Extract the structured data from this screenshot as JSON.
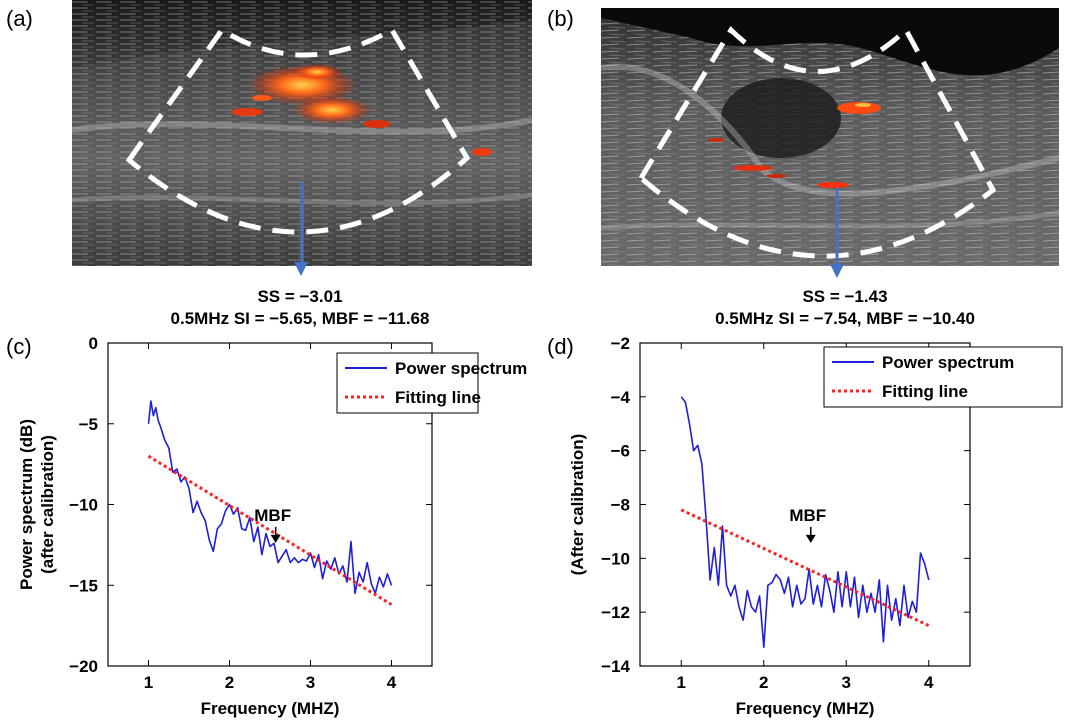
{
  "panels": {
    "a": {
      "label": "(a)",
      "ss": "SS = −3.01",
      "stats": "0.5MHz SI = −5.65, MBF = −11.68"
    },
    "b": {
      "label": "(b)",
      "ss": "SS = −1.43",
      "stats": "0.5MHz SI = −7.54, MBF = −10.40"
    },
    "c": {
      "label": "(c)"
    },
    "d": {
      "label": "(d)"
    }
  },
  "colors": {
    "spectrum": "#1f1fd9",
    "fitting": "#ff2020",
    "marker_arrow": "#4472c4"
  },
  "chart_data": [
    {
      "type": "line",
      "panel": "c",
      "xlabel": "Frequency (MHZ)",
      "ylabel": "Power spectrum (dB)",
      "ylabel2": "(after calibration)",
      "xlim": [
        0.5,
        4.5
      ],
      "ylim": [
        -20,
        0
      ],
      "xticks": [
        1,
        2,
        3,
        4
      ],
      "yticks": [
        0,
        -5,
        -10,
        -15,
        -20
      ],
      "legend_position": "top-right",
      "annotation": {
        "text": "MBF",
        "x": 2.57,
        "y": -12.5
      },
      "series": [
        {
          "name": "Power spectrum",
          "style": "solid",
          "x": [
            1.0,
            1.03,
            1.06,
            1.09,
            1.12,
            1.15,
            1.2,
            1.25,
            1.3,
            1.35,
            1.4,
            1.45,
            1.5,
            1.55,
            1.6,
            1.65,
            1.7,
            1.75,
            1.8,
            1.85,
            1.9,
            1.95,
            2.0,
            2.05,
            2.1,
            2.15,
            2.2,
            2.25,
            2.3,
            2.35,
            2.4,
            2.45,
            2.5,
            2.55,
            2.6,
            2.65,
            2.7,
            2.75,
            2.8,
            2.85,
            2.9,
            2.95,
            3.0,
            3.05,
            3.1,
            3.15,
            3.2,
            3.25,
            3.3,
            3.35,
            3.4,
            3.45,
            3.5,
            3.55,
            3.6,
            3.65,
            3.7,
            3.75,
            3.8,
            3.85,
            3.9,
            3.95,
            4.0
          ],
          "y": [
            -5.0,
            -3.6,
            -4.5,
            -4.0,
            -4.8,
            -5.2,
            -6.0,
            -6.5,
            -8.0,
            -7.8,
            -8.6,
            -8.3,
            -9.0,
            -10.5,
            -9.8,
            -10.5,
            -11.0,
            -12.2,
            -12.9,
            -11.5,
            -11.2,
            -10.4,
            -10.0,
            -10.6,
            -10.2,
            -11.5,
            -11.6,
            -10.8,
            -12.3,
            -11.4,
            -13.1,
            -11.8,
            -12.6,
            -12.4,
            -13.6,
            -13.2,
            -12.8,
            -13.6,
            -13.3,
            -13.6,
            -13.4,
            -13.5,
            -13.0,
            -13.9,
            -13.1,
            -14.6,
            -13.5,
            -14.0,
            -13.3,
            -14.3,
            -13.8,
            -14.8,
            -12.3,
            -15.5,
            -14.2,
            -14.8,
            -13.6,
            -14.9,
            -15.5,
            -14.5,
            -15.1,
            -14.3,
            -15.0
          ]
        },
        {
          "name": "Fitting line",
          "style": "dotted",
          "x": [
            1.0,
            4.0
          ],
          "y": [
            -7.0,
            -16.2
          ]
        }
      ]
    },
    {
      "type": "line",
      "panel": "d",
      "xlabel": "Frequency (MHZ)",
      "ylabel": "(After calibration)",
      "xlim": [
        0.5,
        4.5
      ],
      "ylim": [
        -14,
        -2
      ],
      "xticks": [
        1,
        2,
        3,
        4
      ],
      "yticks": [
        -2,
        -4,
        -6,
        -8,
        -10,
        -12,
        -14
      ],
      "legend_position": "top-right",
      "annotation": {
        "text": "MBF",
        "x": 2.57,
        "y": -9.5
      },
      "series": [
        {
          "name": "Power spectrum",
          "style": "solid",
          "x": [
            1.0,
            1.05,
            1.1,
            1.15,
            1.2,
            1.25,
            1.3,
            1.35,
            1.4,
            1.45,
            1.5,
            1.55,
            1.6,
            1.65,
            1.7,
            1.75,
            1.8,
            1.85,
            1.9,
            1.95,
            2.0,
            2.05,
            2.1,
            2.15,
            2.2,
            2.25,
            2.3,
            2.35,
            2.4,
            2.45,
            2.5,
            2.55,
            2.6,
            2.65,
            2.7,
            2.75,
            2.8,
            2.85,
            2.9,
            2.95,
            3.0,
            3.05,
            3.1,
            3.15,
            3.2,
            3.25,
            3.3,
            3.35,
            3.4,
            3.45,
            3.5,
            3.55,
            3.6,
            3.65,
            3.7,
            3.75,
            3.8,
            3.85,
            3.9,
            3.95,
            4.0
          ],
          "y": [
            -4.0,
            -4.2,
            -5.0,
            -6.0,
            -5.8,
            -6.5,
            -8.5,
            -10.8,
            -9.6,
            -11.0,
            -8.8,
            -11.0,
            -11.4,
            -11.0,
            -11.8,
            -12.3,
            -11.2,
            -11.8,
            -12.0,
            -11.4,
            -13.3,
            -11.0,
            -10.9,
            -10.6,
            -10.8,
            -11.3,
            -10.7,
            -11.8,
            -11.0,
            -11.7,
            -11.5,
            -10.4,
            -11.7,
            -11.0,
            -11.8,
            -10.6,
            -11.2,
            -12.0,
            -10.5,
            -11.8,
            -10.5,
            -11.8,
            -10.7,
            -12.2,
            -11.0,
            -12.0,
            -11.3,
            -12.0,
            -10.8,
            -13.1,
            -11.0,
            -12.3,
            -11.5,
            -12.5,
            -11.0,
            -12.2,
            -11.6,
            -12.0,
            -9.8,
            -10.2,
            -10.8
          ]
        },
        {
          "name": "Fitting line",
          "style": "dotted",
          "x": [
            1.0,
            4.0
          ],
          "y": [
            -8.2,
            -12.5
          ]
        }
      ]
    }
  ]
}
